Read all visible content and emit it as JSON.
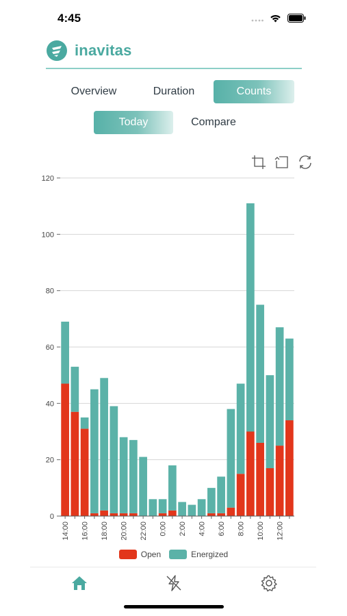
{
  "status": {
    "time": "4:45"
  },
  "brand": {
    "name": "inavitas"
  },
  "tabs": [
    {
      "label": "Overview",
      "active": false
    },
    {
      "label": "Duration",
      "active": false
    },
    {
      "label": "Counts",
      "active": true
    }
  ],
  "subtabs": [
    {
      "label": "Today",
      "active": true
    },
    {
      "label": "Compare",
      "active": false
    }
  ],
  "toolbox": {
    "icons": [
      "zoom-select-icon",
      "zoom-reset-icon",
      "restore-icon"
    ]
  },
  "colors": {
    "accent": "#4aa9a0",
    "open": "#e2361b",
    "energized": "#5bb2a8"
  },
  "chart_data": {
    "type": "bar",
    "stacked": true,
    "categories": [
      "14:00",
      "15:00",
      "16:00",
      "17:00",
      "18:00",
      "19:00",
      "20:00",
      "21:00",
      "22:00",
      "23:00",
      "0:00",
      "1:00",
      "2:00",
      "3:00",
      "4:00",
      "5:00",
      "6:00",
      "7:00",
      "8:00",
      "9:00",
      "10:00",
      "11:00",
      "12:00",
      "13:00"
    ],
    "xtick_labels": [
      "14:00",
      "16:00",
      "18:00",
      "20:00",
      "22:00",
      "0:00",
      "2:00",
      "4:00",
      "6:00",
      "8:00",
      "10:00",
      "12:00"
    ],
    "series": [
      {
        "name": "Open",
        "color": "#e2361b",
        "values": [
          47,
          37,
          31,
          1,
          2,
          1,
          1,
          1,
          0,
          0,
          1,
          2,
          0,
          0,
          0,
          1,
          1,
          3,
          15,
          30,
          26,
          17,
          25,
          34
        ]
      },
      {
        "name": "Energized",
        "color": "#5bb2a8",
        "values": [
          22,
          16,
          4,
          44,
          47,
          38,
          27,
          26,
          21,
          6,
          5,
          16,
          5,
          4,
          6,
          9,
          13,
          35,
          32,
          81,
          49,
          33,
          42,
          29
        ]
      }
    ],
    "ylim": [
      0,
      120
    ],
    "yticks": [
      0,
      20,
      40,
      60,
      80,
      100,
      120
    ],
    "grid": true,
    "legend": "bottom"
  },
  "bottom_nav": [
    {
      "icon": "home-icon",
      "active": true
    },
    {
      "icon": "energy-off-icon",
      "active": false
    },
    {
      "icon": "gear-icon",
      "active": false
    }
  ]
}
